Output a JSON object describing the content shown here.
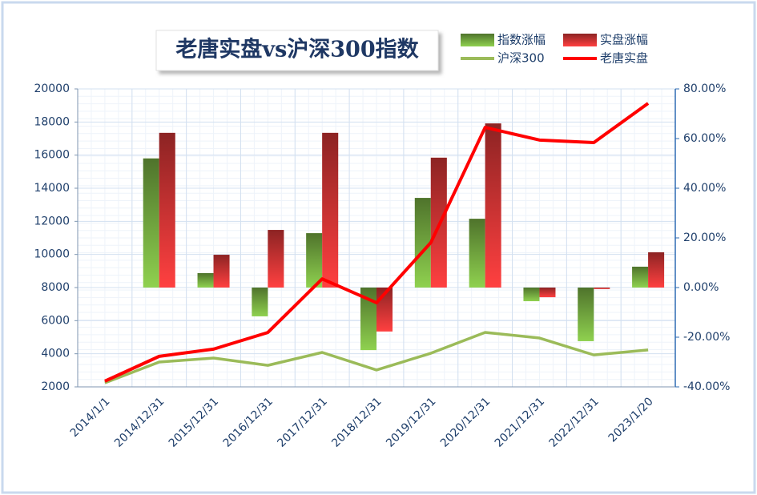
{
  "chart_data": {
    "type": "bar-line",
    "title": "老唐实盘vs沪深300指数",
    "categories": [
      "2014/1/1",
      "2014/12/31",
      "2015/12/31",
      "2016/12/31",
      "2017/12/31",
      "2018/12/31",
      "2019/12/31",
      "2020/12/31",
      "2021/12/31",
      "2022/12/31",
      "2023/1/20"
    ],
    "series": [
      {
        "name": "指数涨幅",
        "type": "bar",
        "axis": "y2",
        "color": "#8fd14f",
        "values": [
          null,
          52,
          5.8,
          -11.6,
          21.9,
          -25.2,
          36.1,
          27.7,
          -5.5,
          -21.6,
          8.4
        ]
      },
      {
        "name": "实盘涨幅",
        "type": "bar",
        "axis": "y2",
        "color": "#ff4040",
        "values": [
          null,
          62.3,
          13.2,
          23.2,
          62.3,
          -17.7,
          52.3,
          66.1,
          -3.9,
          -0.6,
          14.2
        ]
      },
      {
        "name": "沪深300",
        "type": "line",
        "axis": "y",
        "color": "#9bbb59",
        "values": [
          2240,
          3500,
          3740,
          3300,
          4080,
          3020,
          4030,
          5290,
          4950,
          3930,
          4230
        ]
      },
      {
        "name": "老唐实盘",
        "type": "line",
        "axis": "y2",
        "color": "#ff0000",
        "values": [
          -37.7,
          -27.7,
          -24.8,
          -18.1,
          3.5,
          -6.1,
          18.1,
          64.5,
          59.4,
          58.4,
          74.2
        ]
      }
    ],
    "ylim": [
      2000,
      20000
    ],
    "yticks": [
      2000,
      4000,
      6000,
      8000,
      10000,
      12000,
      14000,
      16000,
      18000,
      20000
    ],
    "y2lim": [
      -40,
      80
    ],
    "y2ticks": [
      {
        "value": -40,
        "label": "-40.00%"
      },
      {
        "value": -20,
        "label": "-20.00%"
      },
      {
        "value": 0,
        "label": "0.00%"
      },
      {
        "value": 20,
        "label": "20.00%"
      },
      {
        "value": 40,
        "label": "40.00%"
      },
      {
        "value": 60,
        "label": "60.00%"
      },
      {
        "value": 80,
        "label": "80.00%"
      }
    ],
    "grid": true,
    "legend": "top-right"
  }
}
